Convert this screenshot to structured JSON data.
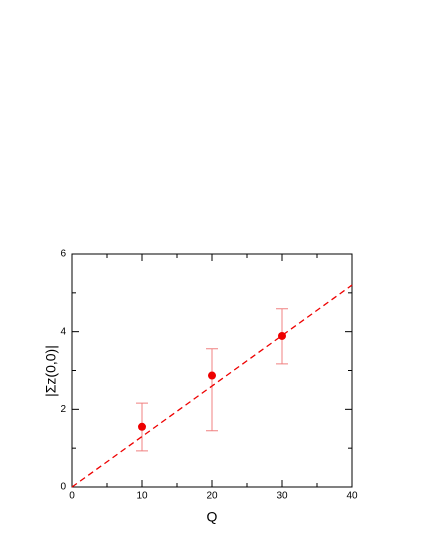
{
  "chart_data": {
    "type": "scatter",
    "x_label": "Q",
    "y_label": "|Σz(0,0)|",
    "xlim": [
      0,
      40
    ],
    "ylim": [
      0,
      6
    ],
    "xticks": [
      0,
      10,
      20,
      30,
      40
    ],
    "yticks": [
      0,
      2,
      4,
      6
    ],
    "xminorticks": [
      5,
      15,
      25,
      35
    ],
    "yminorticks": [
      1,
      3,
      5
    ],
    "series": [
      {
        "color": "#ee0000",
        "errorbar_color": "#f08080",
        "x": [
          10,
          20,
          30
        ],
        "values": [
          1.55,
          2.87,
          3.89
        ],
        "error_minus": [
          0.62,
          1.42,
          0.72
        ],
        "error_plus": [
          0.61,
          0.69,
          0.7
        ]
      },
      {
        "color": "#ee0000",
        "style": "dashed",
        "x": [
          0,
          40
        ],
        "values": [
          0,
          5.2
        ]
      }
    ]
  }
}
